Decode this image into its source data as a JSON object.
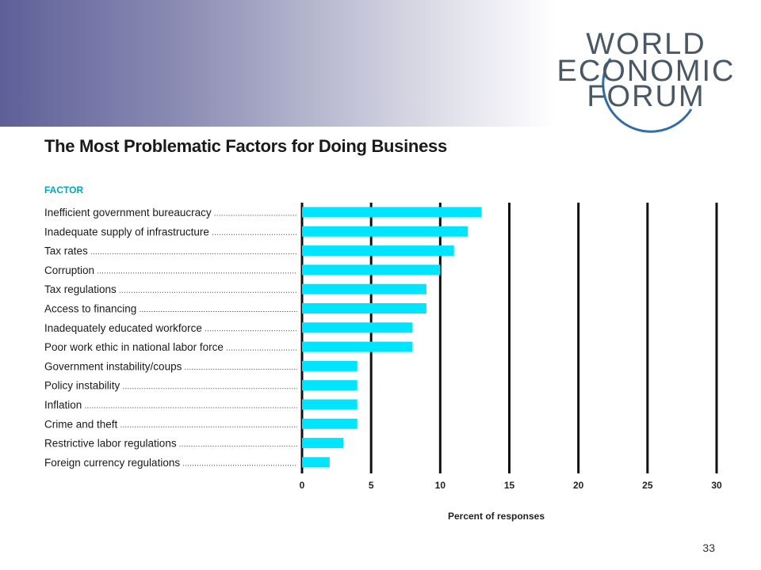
{
  "slide": {
    "logo_lines": [
      "WORLD",
      "ECONOMIC",
      "FORUM"
    ],
    "page_number": "33",
    "colors": {
      "bar": "#00e5ff",
      "header_band_start": "#5e5f98",
      "factor_header": "#00a6c8"
    }
  },
  "chart_data": {
    "type": "bar",
    "orientation": "horizontal",
    "title": "The Most Problematic Factors for Doing Business",
    "category_header": "FACTOR",
    "xlabel": "Percent of responses",
    "xlim": [
      0,
      30
    ],
    "xticks": [
      0,
      5,
      10,
      15,
      20,
      25,
      30
    ],
    "grid": "vertical lines at 5-unit intervals",
    "categories": [
      "Inefficient government bureaucracy",
      "Inadequate supply of infrastructure",
      "Tax rates",
      "Corruption",
      "Tax regulations",
      "Access to financing",
      "Inadequately educated workforce",
      "Poor work ethic in national labor force",
      "Government instability/coups",
      "Policy instability",
      "Inflation",
      "Crime and theft",
      "Restrictive labor regulations",
      "Foreign currency regulations"
    ],
    "values": [
      13,
      12,
      11,
      10,
      9,
      9,
      8,
      8,
      4,
      4,
      4,
      4,
      3,
      2
    ]
  }
}
